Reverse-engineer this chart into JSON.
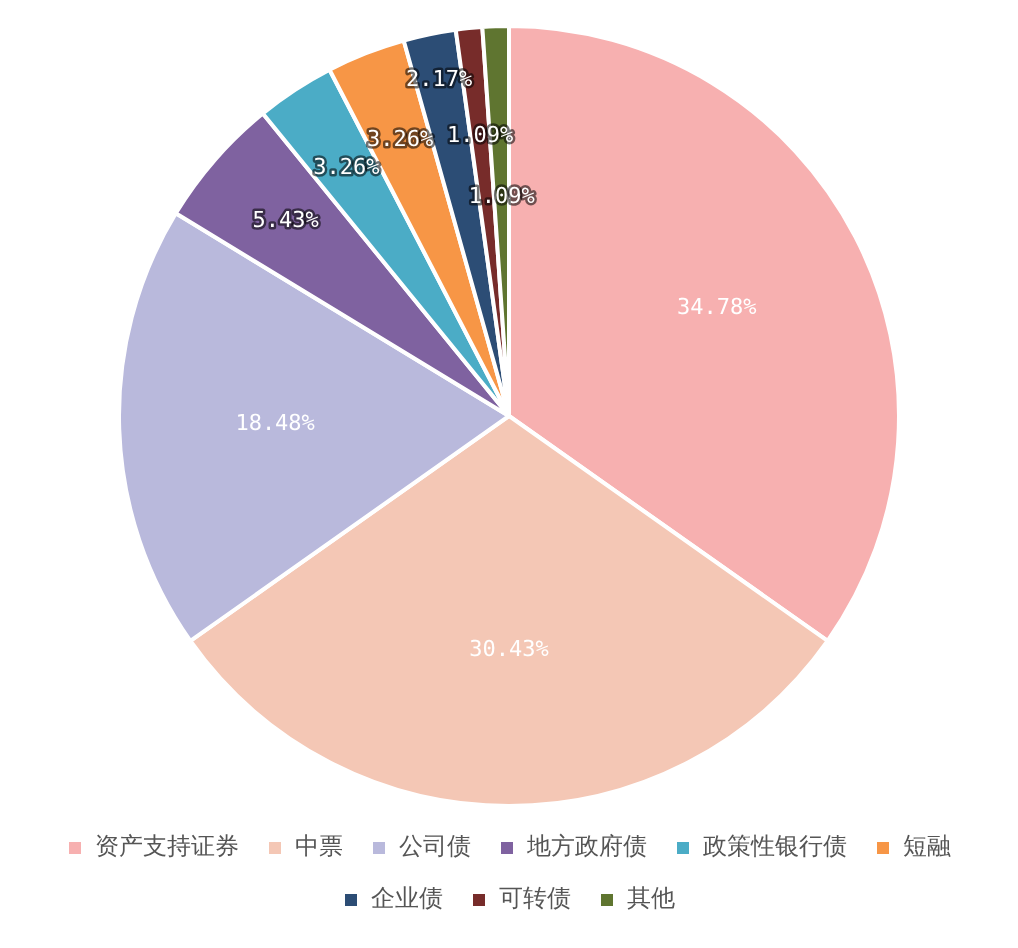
{
  "chart_data": {
    "type": "pie",
    "categories": [
      "资产支持证券",
      "中票",
      "公司债",
      "地方政府债",
      "政策性银行债",
      "短融",
      "企业债",
      "可转债",
      "其他"
    ],
    "values": [
      34.78,
      30.43,
      18.48,
      5.43,
      3.26,
      3.26,
      2.17,
      1.09,
      1.09
    ],
    "colors": [
      "#f7b0b0",
      "#f4c7b5",
      "#b9b9dc",
      "#7f62a0",
      "#4bacc6",
      "#f79646",
      "#2c4d75",
      "#772c2a",
      "#5f7530"
    ],
    "value_labels": [
      "34.78%",
      "30.43%",
      "18.48%",
      "5.43%",
      "3.26%",
      "3.26%",
      "2.17%",
      "1.09%",
      "1.09%"
    ],
    "legend": "bottom"
  }
}
